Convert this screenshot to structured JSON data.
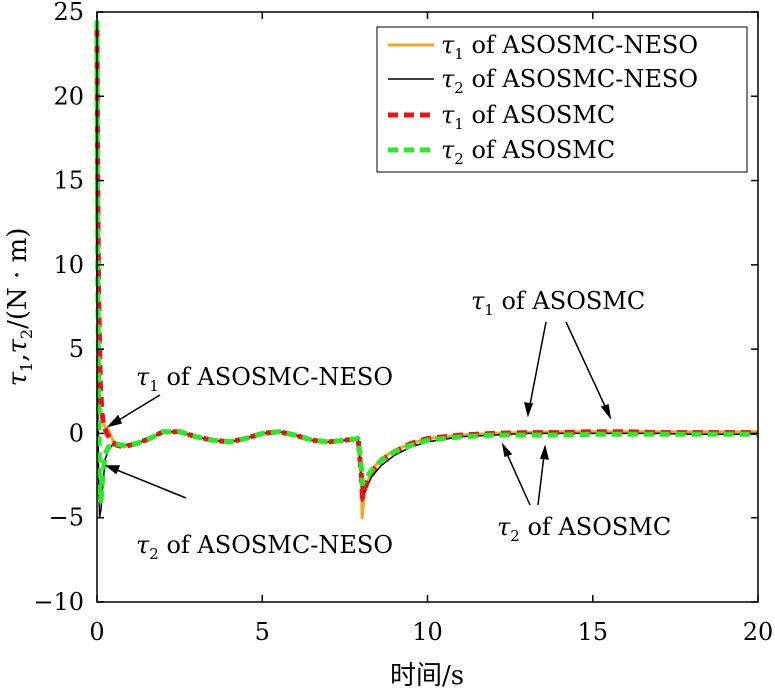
{
  "chart_data": {
    "type": "line",
    "xlabel": "时间/s",
    "ylabel": "τ1,τ2/(N·m)",
    "xlim": [
      0,
      20
    ],
    "ylim": [
      -10,
      25
    ],
    "xticks": [
      "0",
      "5",
      "10",
      "15",
      "20"
    ],
    "yticks": [
      "−10",
      "−5",
      "0",
      "5",
      "10",
      "15",
      "20",
      "25"
    ],
    "grid": false,
    "legend_position": "top-right",
    "legend": [
      {
        "symbol": "τ",
        "sub": "1",
        "text": " of ASOSMC-NESO"
      },
      {
        "symbol": "τ",
        "sub": "2",
        "text": " of ASOSMC-NESO"
      },
      {
        "symbol": "τ",
        "sub": "1",
        "text": " of ASOSMC"
      },
      {
        "symbol": "τ",
        "sub": "2",
        "text": " of ASOSMC"
      }
    ],
    "annotations": [
      {
        "symbol": "τ",
        "sub": "1",
        "text": " of ASOSMC-NESO"
      },
      {
        "symbol": "τ",
        "sub": "2",
        "text": " of ASOSMC-NESO"
      },
      {
        "symbol": "τ",
        "sub": "1",
        "text": " of ASOSMC"
      },
      {
        "symbol": "τ",
        "sub": "2",
        "text": " of ASOSMC"
      }
    ],
    "series": [
      {
        "color": "#f5a623",
        "style": "solid",
        "width": 3,
        "x": [
          0,
          0.02,
          0.05,
          0.1,
          0.2,
          0.35,
          0.5,
          0.8,
          1.2,
          1.6,
          2.0,
          2.5,
          3.0,
          3.5,
          4.0,
          4.5,
          5.0,
          5.5,
          6.0,
          6.5,
          7.0,
          7.5,
          7.9,
          8.0,
          8.02,
          8.1,
          8.3,
          8.6,
          9.0,
          9.5,
          10.0,
          11.0,
          12.0,
          13.0,
          14.0,
          15.0,
          16.0,
          17.0,
          18.0,
          19.0,
          20.0
        ],
        "y": [
          24,
          15,
          5,
          1.5,
          0.5,
          0.2,
          -0.5,
          -0.8,
          -0.6,
          -0.3,
          0.1,
          0.1,
          -0.2,
          -0.4,
          -0.5,
          -0.3,
          0.0,
          0.1,
          -0.1,
          -0.4,
          -0.5,
          -0.4,
          -0.3,
          -3.0,
          -5.0,
          -3.5,
          -2.2,
          -1.5,
          -1.0,
          -0.6,
          -0.3,
          -0.1,
          0.0,
          0.05,
          0.1,
          0.1,
          0.1,
          0.1,
          0.1,
          0.1,
          0.1
        ]
      },
      {
        "color": "#000000",
        "style": "solid",
        "width": 1.5,
        "x": [
          0,
          0.01,
          0.02,
          0.05,
          0.08,
          0.12,
          0.18,
          0.25,
          0.35,
          0.5,
          0.8,
          1.2,
          1.6,
          2.0,
          2.5,
          3.0,
          3.5,
          4.0,
          4.5,
          5.0,
          5.5,
          6.0,
          6.5,
          7.0,
          7.5,
          7.9,
          8.0,
          8.02,
          8.1,
          8.3,
          8.6,
          9.0,
          9.5,
          10.0,
          11.0,
          12.0,
          13.0,
          14.0,
          15.0,
          16.0,
          17.0,
          18.0,
          19.0,
          20.0
        ],
        "y": [
          24,
          10,
          2,
          -3,
          -5,
          -4.5,
          -3,
          -1.5,
          -1,
          -0.6,
          -0.7,
          -0.6,
          -0.3,
          0.1,
          0.1,
          -0.2,
          -0.4,
          -0.5,
          -0.3,
          0.0,
          0.1,
          -0.1,
          -0.4,
          -0.5,
          -0.4,
          -0.3,
          -2.5,
          -4.0,
          -3.5,
          -2.6,
          -1.9,
          -1.3,
          -0.8,
          -0.5,
          -0.2,
          -0.1,
          0.0,
          0.0,
          0.0,
          0.0,
          0.0,
          -0.05,
          -0.05,
          -0.05
        ]
      },
      {
        "color": "#ee1111",
        "style": "dashed",
        "width": 5,
        "x": [
          0,
          0.02,
          0.05,
          0.1,
          0.15,
          0.2,
          0.3,
          0.45,
          0.6,
          0.8,
          1.2,
          1.6,
          2.0,
          2.5,
          3.0,
          3.5,
          4.0,
          4.5,
          5.0,
          5.5,
          6.0,
          6.5,
          7.0,
          7.5,
          7.9,
          8.0,
          8.03,
          8.1,
          8.3,
          8.6,
          9.0,
          9.5,
          10.0,
          11.0,
          12.0,
          13.0,
          14.0,
          15.0,
          16.0,
          17.0,
          18.0,
          19.0,
          20.0
        ],
        "y": [
          24,
          15,
          8,
          3,
          1.2,
          0.5,
          0.0,
          -0.5,
          -0.7,
          -0.8,
          -0.6,
          -0.3,
          0.1,
          0.1,
          -0.2,
          -0.4,
          -0.5,
          -0.3,
          0.0,
          0.1,
          -0.1,
          -0.4,
          -0.5,
          -0.4,
          -0.3,
          -2.5,
          -3.8,
          -3.2,
          -2.3,
          -1.6,
          -1.1,
          -0.6,
          -0.3,
          -0.1,
          0.0,
          0.05,
          0.05,
          0.1,
          0.1,
          0.05,
          0.05,
          0.05,
          0.05
        ]
      },
      {
        "color": "#22ee22",
        "style": "dashed",
        "width": 5,
        "x": [
          0,
          0.01,
          0.02,
          0.05,
          0.08,
          0.12,
          0.18,
          0.25,
          0.35,
          0.5,
          0.8,
          1.2,
          1.6,
          2.0,
          2.5,
          3.0,
          3.5,
          4.0,
          4.5,
          5.0,
          5.5,
          6.0,
          6.5,
          7.0,
          7.5,
          7.9,
          8.0,
          8.03,
          8.1,
          8.3,
          8.6,
          9.0,
          9.5,
          10.0,
          11.0,
          12.0,
          13.0,
          14.0,
          15.0,
          16.0,
          17.0,
          18.0,
          19.0,
          20.0
        ],
        "y": [
          24.5,
          18,
          10,
          2,
          -3,
          -4,
          -2.5,
          -1.2,
          -0.8,
          -0.6,
          -0.7,
          -0.6,
          -0.3,
          0.1,
          0.1,
          -0.2,
          -0.4,
          -0.5,
          -0.3,
          0.0,
          0.1,
          -0.1,
          -0.4,
          -0.5,
          -0.4,
          -0.3,
          -2.0,
          -3.0,
          -2.8,
          -2.2,
          -1.6,
          -1.1,
          -0.7,
          -0.4,
          -0.2,
          -0.1,
          -0.1,
          -0.1,
          -0.05,
          -0.05,
          -0.05,
          -0.05,
          -0.05,
          -0.05
        ]
      }
    ]
  }
}
